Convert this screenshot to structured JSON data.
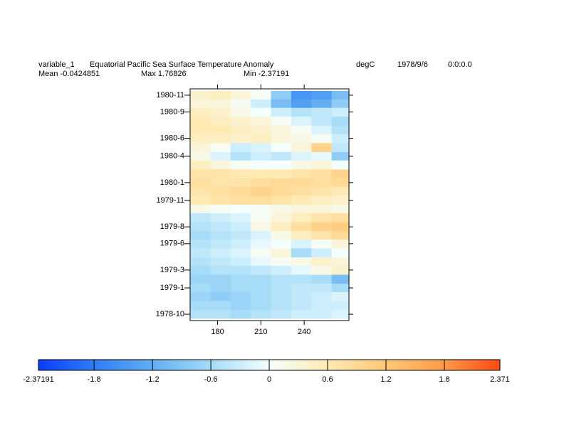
{
  "chart_data": {
    "type": "heatmap",
    "variable": "variable_1",
    "title": "Equatorial Pacific Sea Surface Temperature Anomaly",
    "units": "degC",
    "date": "1978/9/6",
    "time": "0:0:0.0",
    "mean_label": "Mean -0.0424851",
    "max_label": "Max 1.76826",
    "min_label": "Min -2.37191",
    "xlim": [
      161,
      271
    ],
    "xticks": [
      180,
      210,
      240
    ],
    "ylim": [
      1978.69,
      1980.89
    ],
    "yticks": [
      {
        "value": 1980.83,
        "label": "1980-11"
      },
      {
        "value": 1980.67,
        "label": "1980-9"
      },
      {
        "value": 1980.42,
        "label": "1980-6"
      },
      {
        "value": 1980.25,
        "label": "1980-4"
      },
      {
        "value": 1980.0,
        "label": "1980-1"
      },
      {
        "value": 1979.83,
        "label": "1979-11"
      },
      {
        "value": 1979.58,
        "label": "1979-8"
      },
      {
        "value": 1979.42,
        "label": "1979-6"
      },
      {
        "value": 1979.17,
        "label": "1979-3"
      },
      {
        "value": 1979.0,
        "label": "1979-1"
      },
      {
        "value": 1978.75,
        "label": "1978-10"
      }
    ],
    "x": [
      168,
      182,
      196,
      210,
      224,
      238,
      252,
      266
    ],
    "y": [
      1980.83,
      1980.75,
      1980.67,
      1980.58,
      1980.5,
      1980.42,
      1980.33,
      1980.25,
      1980.17,
      1980.08,
      1980.0,
      1979.92,
      1979.83,
      1979.75,
      1979.67,
      1979.58,
      1979.5,
      1979.42,
      1979.33,
      1979.25,
      1979.17,
      1979.08,
      1979.0,
      1978.92,
      1978.83,
      1978.75
    ],
    "values": [
      [
        0.4,
        0.5,
        0.3,
        0.1,
        -0.8,
        -1.5,
        -1.4,
        -1.0
      ],
      [
        0.3,
        0.3,
        0.1,
        -0.3,
        -1.0,
        -1.4,
        -1.2,
        -0.8
      ],
      [
        0.5,
        0.4,
        0.2,
        0.0,
        -0.3,
        -0.5,
        -0.4,
        -0.3
      ],
      [
        0.6,
        0.5,
        0.4,
        0.3,
        0.1,
        -0.2,
        -0.4,
        -0.6
      ],
      [
        0.6,
        0.6,
        0.5,
        0.4,
        0.3,
        0.1,
        -0.2,
        -0.5
      ],
      [
        0.5,
        0.5,
        0.4,
        0.5,
        0.3,
        0.2,
        0.1,
        -0.3
      ],
      [
        0.3,
        0.1,
        -0.3,
        -0.2,
        0.0,
        0.3,
        1.0,
        -0.4
      ],
      [
        0.2,
        -0.2,
        -0.5,
        -0.3,
        -0.4,
        -0.2,
        -0.1,
        -0.8
      ],
      [
        0.5,
        0.3,
        0.1,
        0.0,
        0.0,
        0.2,
        0.3,
        0.0
      ],
      [
        0.7,
        0.7,
        0.6,
        0.6,
        0.6,
        0.7,
        0.8,
        1.0
      ],
      [
        0.8,
        0.7,
        0.7,
        0.8,
        0.9,
        0.9,
        0.8,
        0.9
      ],
      [
        0.7,
        0.8,
        0.9,
        1.0,
        0.9,
        0.8,
        0.7,
        0.6
      ],
      [
        0.6,
        0.7,
        0.8,
        0.8,
        0.7,
        0.6,
        0.5,
        0.4
      ],
      [
        0.2,
        0.1,
        0.0,
        0.1,
        0.2,
        0.3,
        0.3,
        0.2
      ],
      [
        -0.4,
        -0.3,
        -0.2,
        0.1,
        0.3,
        0.5,
        0.7,
        0.8
      ],
      [
        -0.5,
        -0.4,
        -0.3,
        0.2,
        0.5,
        0.8,
        1.0,
        1.1
      ],
      [
        -0.6,
        -0.5,
        -0.4,
        -0.2,
        0.2,
        0.5,
        0.7,
        0.9
      ],
      [
        -0.5,
        -0.4,
        -0.3,
        -0.1,
        0.0,
        -0.2,
        0.1,
        0.3
      ],
      [
        -0.4,
        -0.3,
        -0.2,
        0.1,
        0.3,
        -0.6,
        -0.3,
        0.0
      ],
      [
        -0.5,
        -0.4,
        -0.3,
        -0.1,
        0.1,
        0.2,
        0.4,
        0.3
      ],
      [
        -0.6,
        -0.5,
        -0.5,
        -0.4,
        -0.3,
        -0.1,
        0.2,
        0.4
      ],
      [
        -0.7,
        -0.7,
        -0.6,
        -0.6,
        -0.5,
        -0.5,
        -0.6,
        -1.0
      ],
      [
        -0.6,
        -0.7,
        -0.6,
        -0.6,
        -0.5,
        -0.4,
        -0.4,
        -0.6
      ],
      [
        -0.7,
        -0.8,
        -0.7,
        -0.6,
        -0.5,
        -0.4,
        -0.3,
        -0.2
      ],
      [
        -0.6,
        -0.6,
        -0.7,
        -0.6,
        -0.5,
        -0.4,
        -0.3,
        -0.3
      ],
      [
        -0.5,
        -0.5,
        -0.6,
        -0.5,
        -0.4,
        -0.3,
        -0.3,
        -0.2
      ]
    ],
    "colorbar": {
      "lim": [
        -2.37191,
        2.371
      ],
      "ticks": [
        {
          "value": -2.37191,
          "label": "-2.37191"
        },
        -1.8,
        -1.2,
        -0.6,
        0,
        0.6,
        1.2,
        1.8,
        2.371
      ],
      "colors": [
        "#0a3cff",
        "#2f7df5",
        "#62aef2",
        "#a6dcf8",
        "#f4ffff",
        "#ffeab4",
        "#ffc878",
        "#ff9a48",
        "#ff4a14"
      ]
    }
  }
}
